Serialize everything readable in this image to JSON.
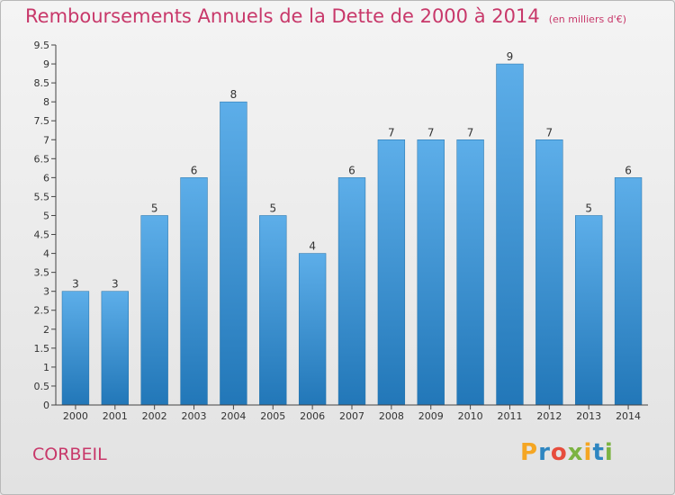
{
  "title": "Remboursements Annuels de la Dette de 2000 à 2014",
  "unit": "(en milliers d'€)",
  "city": "CORBEIL",
  "logo": {
    "text": "Proxiti",
    "colors": [
      "#f5a623",
      "#2e86c1",
      "#e74c3c",
      "#7cb342",
      "#f5a623",
      "#2e86c1",
      "#7cb342"
    ]
  },
  "colors": {
    "title": "#c8386a",
    "bar_top": "#5daee9",
    "bar_bottom": "#2277b8",
    "axis": "#444444"
  },
  "chart_data": {
    "type": "bar",
    "title": "Remboursements Annuels de la Dette de 2000 à 2014",
    "categories": [
      "2000",
      "2001",
      "2002",
      "2003",
      "2004",
      "2005",
      "2006",
      "2007",
      "2008",
      "2009",
      "2010",
      "2011",
      "2012",
      "2013",
      "2014"
    ],
    "values": [
      3,
      3,
      5,
      6,
      8,
      5,
      4,
      6,
      7,
      7,
      7,
      9,
      7,
      5,
      6
    ],
    "data_labels": [
      "3",
      "3",
      "5",
      "6",
      "8",
      "5",
      "4",
      "6",
      "7",
      "7",
      "7",
      "9",
      "7",
      "5",
      "6"
    ],
    "ylim": [
      0,
      9.5
    ],
    "yticks": [
      "0",
      "0.5",
      "1",
      "1.5",
      "2",
      "2.5",
      "3",
      "3.5",
      "4",
      "4.5",
      "5",
      "5.5",
      "6",
      "6.5",
      "7",
      "7.5",
      "8",
      "8.5",
      "9",
      "9.5"
    ],
    "xlabel": "",
    "ylabel": "",
    "grid": false,
    "legend": "none"
  }
}
